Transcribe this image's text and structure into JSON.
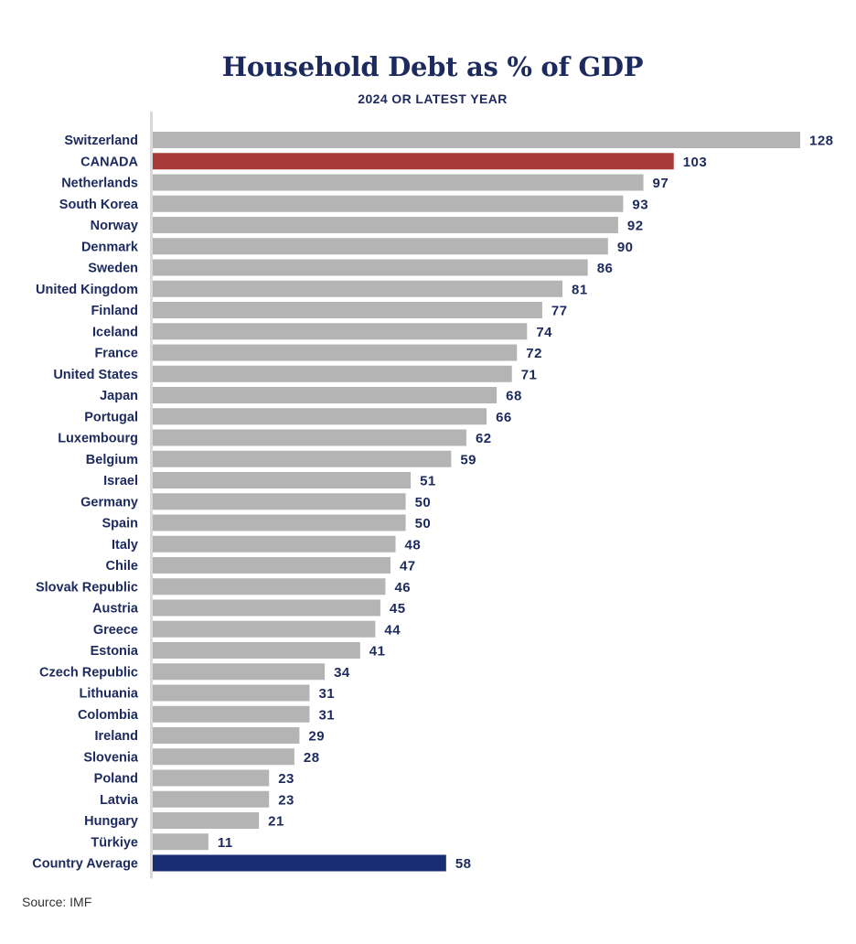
{
  "chart_data": {
    "type": "bar",
    "orientation": "horizontal",
    "title": "Household Debt as % of GDP",
    "subtitle": "2024 OR LATEST YEAR",
    "xlabel": "",
    "ylabel": "",
    "xlim": [
      0,
      128
    ],
    "grid": false,
    "categories": [
      "Switzerland",
      "CANADA",
      "Netherlands",
      "South Korea",
      "Norway",
      "Denmark",
      "Sweden",
      "United Kingdom",
      "Finland",
      "Iceland",
      "France",
      "United States",
      "Japan",
      "Portugal",
      "Luxembourg",
      "Belgium",
      "Israel",
      "Germany",
      "Spain",
      "Italy",
      "Chile",
      "Slovak Republic",
      "Austria",
      "Greece",
      "Estonia",
      "Czech Republic",
      "Lithuania",
      "Colombia",
      "Ireland",
      "Slovenia",
      "Poland",
      "Latvia",
      "Hungary",
      "Türkiye",
      "Country Average"
    ],
    "values": [
      128,
      103,
      97,
      93,
      92,
      90,
      86,
      81,
      77,
      74,
      72,
      71,
      68,
      66,
      62,
      59,
      51,
      50,
      50,
      48,
      47,
      46,
      45,
      44,
      41,
      34,
      31,
      31,
      29,
      28,
      23,
      23,
      21,
      11,
      58
    ],
    "highlights": {
      "CANADA": "#a83a37",
      "Country Average": "#172d74"
    },
    "default_color": "#b4b4b4",
    "axis_color": "#d9d9d9",
    "label_color": "#1c2a5e",
    "source": "Source: IMF"
  }
}
